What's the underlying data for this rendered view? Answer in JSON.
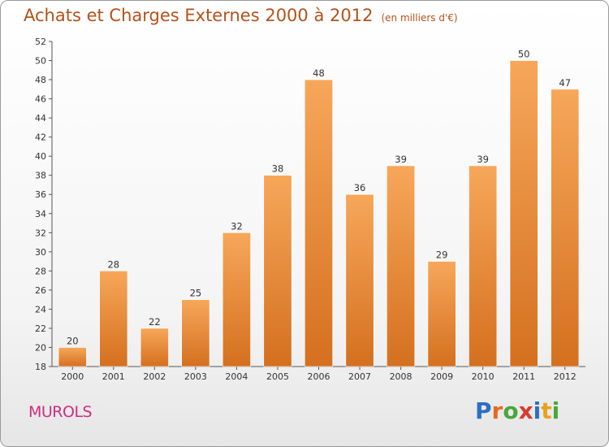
{
  "header": {
    "title": "Achats et Charges Externes 2000 à 2012",
    "subtitle": "(en milliers d'€)"
  },
  "footer": {
    "commune": "MUROLS",
    "logo": {
      "letters": [
        "P",
        "r",
        "o",
        "x",
        "i",
        "t",
        "i"
      ],
      "colors": [
        "#2b6fc4",
        "#e46b1c",
        "#4aa63c",
        "#d93b2c",
        "#2b6fc4",
        "#e9a11c",
        "#4aa63c"
      ]
    }
  },
  "colors": {
    "bar_top": "#f7a75a",
    "bar_bottom": "#d4701f",
    "accent": "#b5511a",
    "commune": "#cc2e80"
  },
  "chart_data": {
    "type": "bar",
    "title": "Achats et Charges Externes 2000 à 2012",
    "subtitle": "(en milliers d'€)",
    "categories": [
      "2000",
      "2001",
      "2002",
      "2003",
      "2004",
      "2005",
      "2006",
      "2007",
      "2008",
      "2009",
      "2010",
      "2011",
      "2012"
    ],
    "values": [
      20,
      28,
      22,
      25,
      32,
      38,
      48,
      36,
      39,
      29,
      39,
      50,
      47
    ],
    "ylim": [
      18,
      52
    ],
    "yticks": [
      18,
      20,
      22,
      24,
      26,
      28,
      30,
      32,
      34,
      36,
      38,
      40,
      42,
      44,
      46,
      48,
      50,
      52
    ],
    "xlabel": "",
    "ylabel": "",
    "grid": false
  }
}
